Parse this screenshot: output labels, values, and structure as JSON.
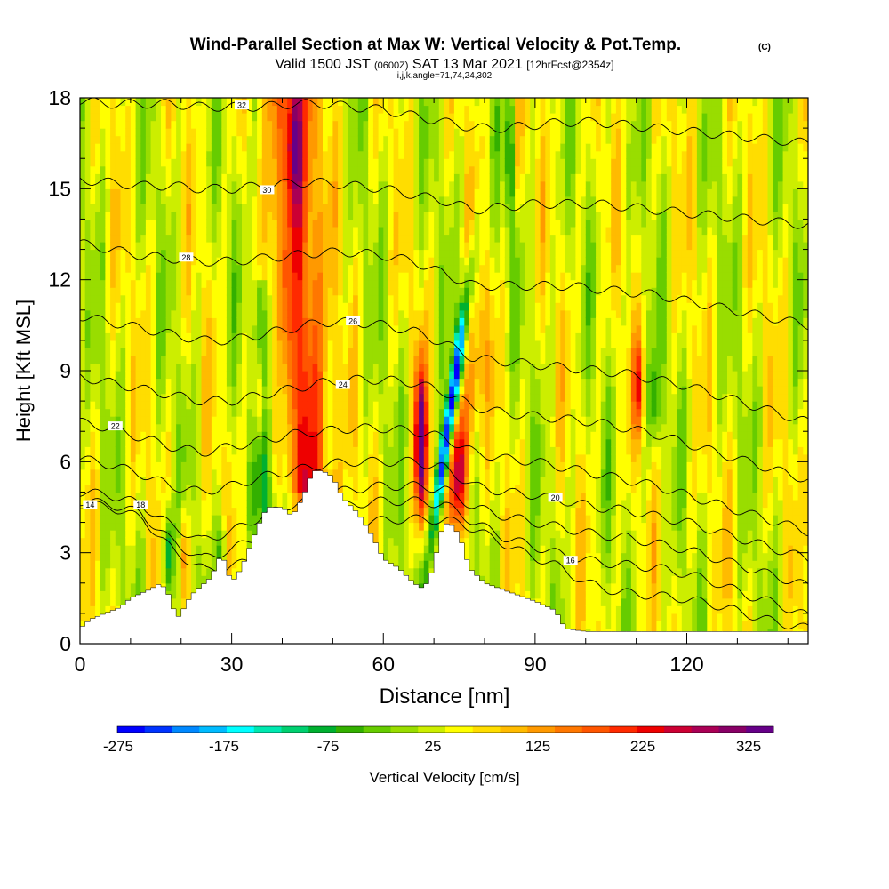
{
  "title": {
    "main": "Wind-Parallel Section at Max W: Vertical Velocity & Pot.Temp.",
    "copyright": "(C)",
    "valid_prefix": "Valid 1500 JST",
    "valid_z": "(0600Z)",
    "valid_date": "SAT 13 Mar 2021",
    "forecast": "[12hrFcst@2354z]",
    "indices": "i,j,k,angle=71,74,24,302"
  },
  "chart_data": {
    "type": "heatmap",
    "xlabel": "Distance [nm]",
    "ylabel": "Height [Kft MSL]",
    "xlim": [
      0,
      144
    ],
    "ylim": [
      0,
      18
    ],
    "x_ticks": [
      0,
      30,
      60,
      90,
      120
    ],
    "y_ticks": [
      0,
      3,
      6,
      9,
      12,
      15,
      18
    ],
    "grid": false,
    "colorbar": {
      "label": "Vertical Velocity [cm/s]",
      "placement": "bottom",
      "tick_labels": [
        "-275",
        "-175",
        "-75",
        "25",
        "125",
        "225",
        "325"
      ],
      "colors": [
        "#0000ff",
        "#0033ff",
        "#0088ff",
        "#00bbff",
        "#00ffff",
        "#00e8b0",
        "#00d070",
        "#00b030",
        "#33b000",
        "#66cc00",
        "#99dd00",
        "#ccee00",
        "#ffff00",
        "#ffdd00",
        "#ffbb00",
        "#ff9900",
        "#ff7700",
        "#ff5500",
        "#ff2a00",
        "#ee0000",
        "#cc0033",
        "#aa0055",
        "#880066",
        "#660088"
      ]
    },
    "terrain_height_kft": {
      "x": [
        0,
        2,
        8,
        10,
        14,
        16,
        18,
        19,
        20,
        22,
        26,
        28,
        30,
        32,
        35,
        37,
        40,
        42,
        44,
        45,
        46,
        48,
        50,
        52,
        55,
        58,
        60,
        63,
        66,
        68,
        70,
        71,
        72,
        73,
        75,
        77,
        80,
        85,
        90,
        94,
        96,
        100,
        110,
        120,
        130,
        144
      ],
      "height": [
        0.5,
        0.8,
        1.2,
        1.5,
        1.8,
        2.0,
        1.5,
        0.8,
        1.0,
        1.6,
        2.2,
        3.0,
        2.0,
        2.5,
        3.8,
        4.5,
        4.5,
        4.2,
        4.8,
        5.2,
        5.7,
        5.7,
        5.5,
        4.8,
        4.3,
        3.5,
        2.8,
        2.5,
        2.0,
        1.8,
        2.5,
        3.5,
        3.9,
        4.0,
        3.6,
        2.5,
        2.0,
        1.7,
        1.4,
        1.1,
        0.5,
        0.4,
        0.4,
        0.4,
        0.4,
        0.4
      ]
    },
    "theta_contours": [
      {
        "label": "14",
        "label_x": 2,
        "y": [
          4.6,
          4.5,
          4.1,
          3.0,
          2.4,
          2.6,
          3.0,
          3.5,
          3.8,
          4.0,
          4.1,
          4.1,
          4.0,
          3.5,
          3.0,
          2.6,
          2.0,
          1.7,
          1.6,
          1.5,
          1.3,
          1.0,
          0.7,
          0.5
        ]
      },
      {
        "label": "16",
        "label_x": 97,
        "y": [
          4.7,
          4.6,
          4.3,
          3.4,
          2.8,
          3.1,
          3.6,
          4.1,
          4.4,
          4.6,
          4.7,
          4.7,
          4.6,
          4.0,
          3.5,
          3.2,
          2.9,
          2.7,
          2.6,
          2.5,
          2.3,
          2.0,
          1.6,
          1.3,
          0.9
        ]
      },
      {
        "label": "18",
        "label_x": 12,
        "y": [
          5.0,
          4.9,
          4.6,
          3.9,
          3.4,
          3.7,
          4.2,
          4.6,
          4.9,
          5.1,
          5.2,
          5.2,
          5.1,
          4.5,
          4.2,
          4.0,
          3.8,
          3.6,
          3.5,
          3.3,
          3.1,
          2.8,
          2.5,
          2.2,
          1.9
        ]
      },
      {
        "label": "20",
        "label_x": 94,
        "y": [
          6.1,
          5.9,
          5.6,
          5.2,
          5.0,
          5.2,
          5.5,
          5.7,
          5.9,
          6.0,
          6.0,
          6.0,
          5.8,
          5.2,
          5.0,
          4.9,
          4.7,
          4.5,
          4.4,
          4.2,
          4.0,
          3.7,
          3.4,
          3.1,
          2.8
        ]
      },
      {
        "label": "22",
        "label_x": 7,
        "y": [
          7.3,
          7.1,
          6.8,
          6.5,
          6.3,
          6.5,
          6.7,
          6.9,
          7.0,
          7.1,
          7.1,
          7.0,
          6.8,
          6.3,
          6.1,
          6.0,
          5.8,
          5.6,
          5.4,
          5.2,
          4.9,
          4.6,
          4.3,
          4.0,
          3.7
        ]
      },
      {
        "label": "24",
        "label_x": 52,
        "y": [
          8.8,
          8.6,
          8.4,
          8.2,
          8.0,
          8.0,
          8.2,
          8.4,
          8.6,
          8.7,
          8.7,
          8.6,
          8.3,
          7.8,
          7.6,
          7.5,
          7.4,
          7.3,
          7.1,
          6.9,
          6.6,
          6.3,
          6.0,
          5.7,
          5.4
        ]
      },
      {
        "label": "26",
        "label_x": 54,
        "y": [
          10.8,
          10.6,
          10.4,
          10.2,
          10.0,
          10.0,
          10.2,
          10.4,
          10.6,
          10.6,
          10.5,
          10.3,
          9.9,
          9.4,
          9.3,
          9.2,
          9.1,
          9.0,
          8.9,
          8.7,
          8.5,
          8.2,
          7.9,
          7.6,
          7.3
        ]
      },
      {
        "label": "28",
        "label_x": 21,
        "y": [
          13.2,
          13.0,
          12.8,
          12.7,
          12.6,
          12.6,
          12.7,
          12.8,
          12.9,
          12.9,
          12.8,
          12.6,
          12.2,
          11.8,
          11.8,
          11.8,
          11.8,
          11.7,
          11.6,
          11.5,
          11.3,
          11.1,
          10.9,
          10.7,
          10.5
        ]
      },
      {
        "label": "30",
        "label_x": 37,
        "y": [
          15.3,
          15.2,
          15.1,
          15.1,
          15.0,
          15.0,
          15.1,
          15.2,
          15.2,
          15.1,
          15.0,
          14.8,
          14.6,
          14.3,
          14.4,
          14.5,
          14.5,
          14.5,
          14.4,
          14.3,
          14.2,
          14.1,
          14.0,
          13.9,
          13.8
        ]
      },
      {
        "label": "32",
        "label_x": 32,
        "y": [
          17.9,
          17.8,
          17.8,
          17.8,
          17.7,
          17.7,
          17.7,
          17.8,
          17.8,
          17.7,
          17.6,
          17.4,
          17.2,
          17.0,
          17.0,
          17.1,
          17.2,
          17.2,
          17.1,
          17.0,
          16.9,
          16.8,
          16.7,
          16.6,
          16.5
        ]
      }
    ]
  }
}
